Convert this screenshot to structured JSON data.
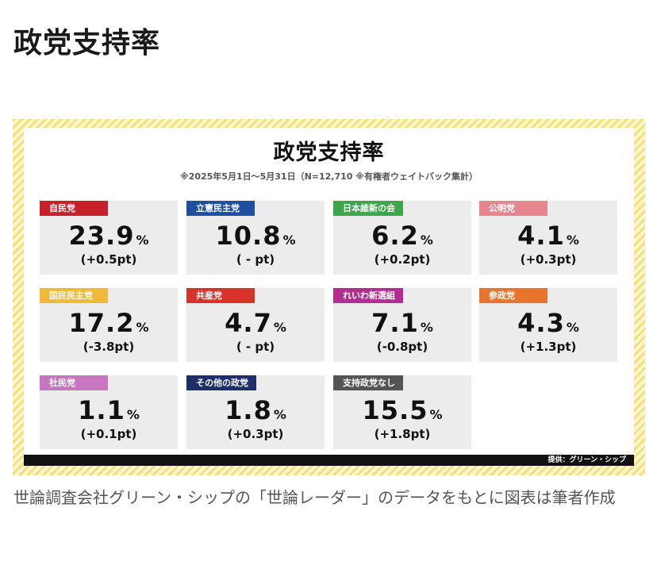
{
  "page": {
    "title": "政党支持率"
  },
  "figure": {
    "title": "政党支持率",
    "subtitle": "※2025年5月1日～5月31日（N=12,710 ※有権者ウェイトバック集計）",
    "credit": "提供：グリーン・シップ",
    "frame_color": "#f3e07a"
  },
  "parties": [
    {
      "name": "自民党",
      "value": "23.9",
      "unit": "%",
      "diff": "(+0.5pt)",
      "color": "#c8202a"
    },
    {
      "name": "立憲民主党",
      "value": "10.8",
      "unit": "%",
      "diff": "( - pt)",
      "color": "#1f4fa0"
    },
    {
      "name": "日本維新の会",
      "value": "6.2",
      "unit": "%",
      "diff": "(+0.2pt)",
      "color": "#3ba64a"
    },
    {
      "name": "公明党",
      "value": "4.1",
      "unit": "%",
      "diff": "(+0.3pt)",
      "color": "#e8848d"
    },
    {
      "name": "国民民主党",
      "value": "17.2",
      "unit": "%",
      "diff": "(-3.8pt)",
      "color": "#f0b93a"
    },
    {
      "name": "共産党",
      "value": "4.7",
      "unit": "%",
      "diff": "( - pt)",
      "color": "#d8332b"
    },
    {
      "name": "れいわ新選組",
      "value": "7.1",
      "unit": "%",
      "diff": "(-0.8pt)",
      "color": "#b22d8f"
    },
    {
      "name": "参政党",
      "value": "4.3",
      "unit": "%",
      "diff": "(+1.3pt)",
      "color": "#e8752d"
    },
    {
      "name": "社民党",
      "value": "1.1",
      "unit": "%",
      "diff": "(+0.1pt)",
      "color": "#c777c2"
    },
    {
      "name": "その他の政党",
      "value": "1.8",
      "unit": "%",
      "diff": "(+0.3pt)",
      "color": "#1d2f6b"
    },
    {
      "name": "支持政党なし",
      "value": "15.5",
      "unit": "%",
      "diff": "(+1.8pt)",
      "color": "#555555"
    }
  ],
  "caption": "世論調査会社グリーン・シップの「世論レーダー」のデータをもとに図表は筆者作成"
}
